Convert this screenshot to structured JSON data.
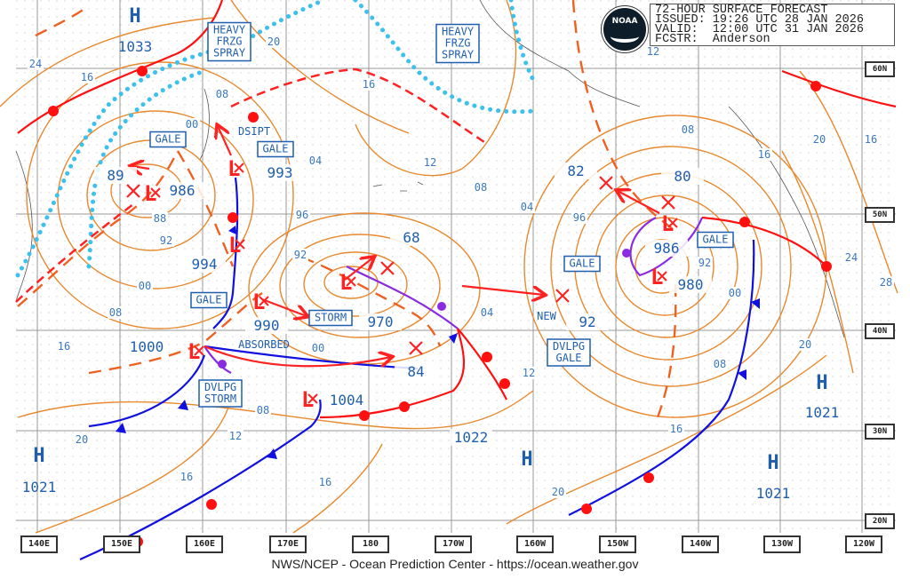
{
  "header": {
    "title": "72-HOUR SURFACE FORECAST",
    "issued": "ISSUED: 19:26 UTC 28 JAN 2026",
    "valid": "VALID:  12:00 UTC 31 JAN 2026",
    "forecaster": "FCSTR:  Anderson"
  },
  "logo": {
    "text": "NOAA"
  },
  "footer": "NWS/NCEP - Ocean Prediction Center - https://ocean.weather.gov",
  "longitudes": [
    "140E",
    "150E",
    "160E",
    "170E",
    "180",
    "170W",
    "160W",
    "150W",
    "140W",
    "130W",
    "120W"
  ],
  "latitudes": [
    "60N",
    "50N",
    "40N",
    "30N",
    "20N"
  ],
  "colors": {
    "isobar": "#e8892e",
    "label": "#1f5fae",
    "low": "#ff1a1a",
    "cold_front": "#1010e0",
    "warm_front": "#ff1010",
    "occluded": "#8a2be2",
    "ice": "#3cc0ec",
    "trough": "#f06020"
  },
  "highs": [
    {
      "symbol": "H",
      "pressure": "1033"
    },
    {
      "symbol": "H",
      "pressure": "1021"
    },
    {
      "symbol": "H",
      "pressure": "1021"
    },
    {
      "symbol": "H",
      "pressure": "1021"
    },
    {
      "symbol": "H",
      "pressure": "1021"
    }
  ],
  "center_pressures": [
    "89",
    "986",
    "993",
    "994",
    "990",
    "970",
    "68",
    "1000",
    "84",
    "1004",
    "1022",
    "82",
    "80",
    "986",
    "980",
    "92"
  ],
  "isobar_labels": [
    "24",
    "16",
    "20",
    "08",
    "00",
    "04",
    "16",
    "12",
    "08",
    "96",
    "92",
    "88",
    "92",
    "00",
    "08",
    "16",
    "00",
    "04",
    "12",
    "08",
    "12",
    "20",
    "16",
    "16",
    "20",
    "04",
    "96",
    "92",
    "00",
    "08",
    "16",
    "20",
    "08",
    "16",
    "20",
    "16",
    "24",
    "28",
    "12"
  ],
  "warnings": {
    "frzg_spray_1": [
      "HEAVY",
      "FRZG",
      "SPRAY"
    ],
    "frzg_spray_2": [
      "HEAVY",
      "FRZG",
      "SPRAY"
    ],
    "gale_1": "GALE",
    "gale_2": "GALE",
    "gale_3": "GALE",
    "gale_4": "GALE",
    "gale_5": "GALE",
    "storm": "STORM",
    "dvlpg_storm": [
      "DVLPG",
      "STORM"
    ],
    "dvlpg_gale": [
      "DVLPG",
      "GALE"
    ]
  },
  "annotations": {
    "dsipt": "DSIPT",
    "absorbed": "ABSORBED",
    "new": "NEW"
  },
  "low_symbol": "L"
}
